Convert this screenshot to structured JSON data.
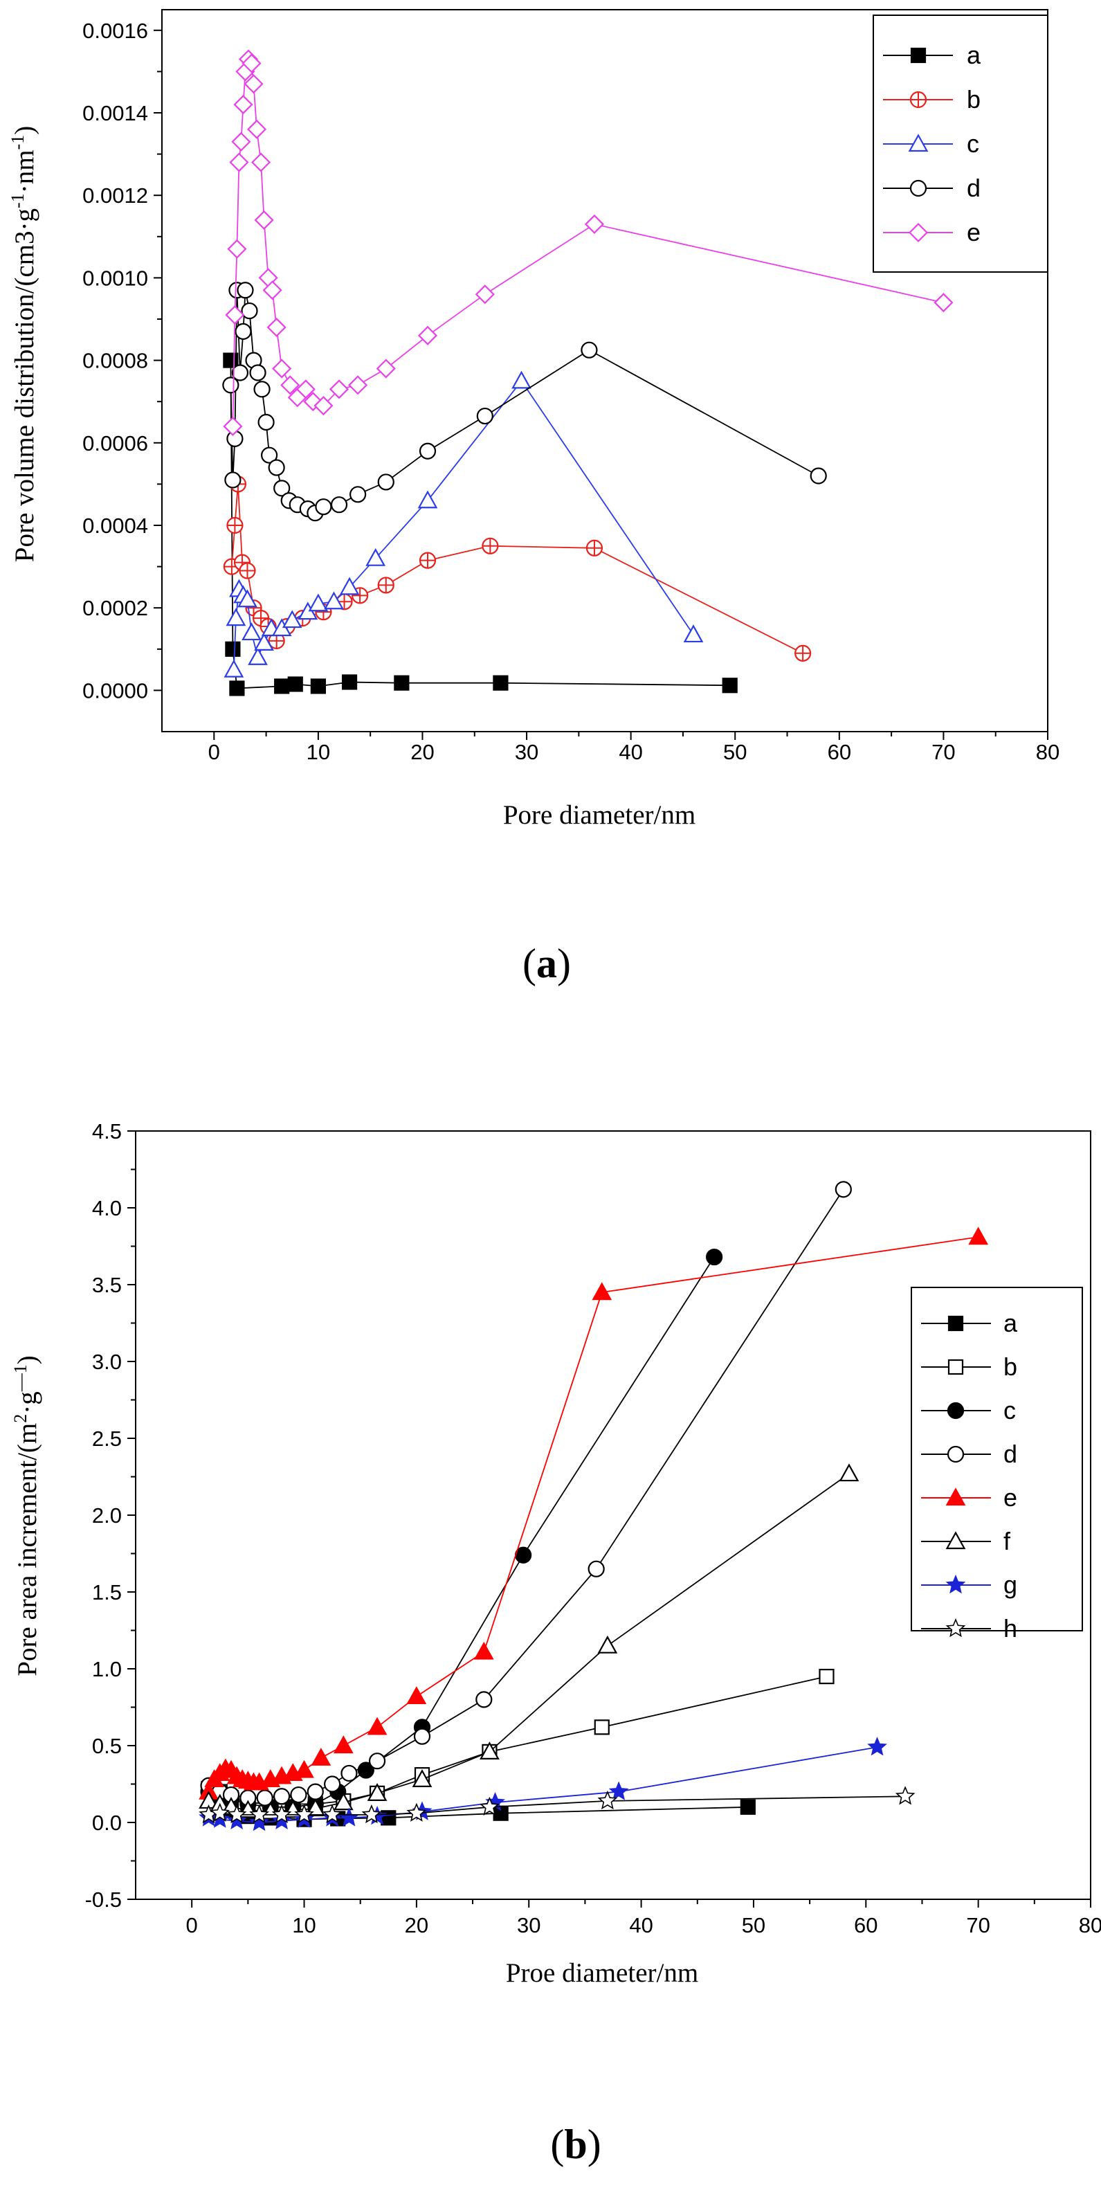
{
  "chart_data": [
    {
      "type": "line",
      "caption_open": "(",
      "caption_letter": "a",
      "caption_close": ")",
      "title": "",
      "xlabel": "Pore diameter/nm",
      "ylabel_prefix": "Pore volume distribution/(cm3·g",
      "ylabel_exp1": "-1",
      "ylabel_mid": "·nm",
      "ylabel_exp2": "-1",
      "ylabel_suffix": ")",
      "xlim": [
        -5,
        80
      ],
      "ylim": [
        -0.0001,
        0.00165
      ],
      "xticks": [
        0,
        10,
        20,
        30,
        40,
        50,
        60,
        70,
        80
      ],
      "yticks": [
        0.0,
        0.0002,
        0.0004,
        0.0006,
        0.0008,
        0.001,
        0.0012,
        0.0014,
        0.0016
      ],
      "ytick_labels": [
        "0.0000",
        "0.0002",
        "0.0004",
        "0.0006",
        "0.0008",
        "0.0010",
        "0.0012",
        "0.0014",
        "0.0016"
      ],
      "grid": false,
      "legend": "top-right",
      "series": [
        {
          "name": "a",
          "color": "#000000",
          "marker": "square",
          "filled": true,
          "points": [
            [
              1.6,
              0.0008
            ],
            [
              1.8,
              0.0001
            ],
            [
              2.2,
              5e-06
            ],
            [
              6.5,
              1e-05
            ],
            [
              7.8,
              1.5e-05
            ],
            [
              10,
              1e-05
            ],
            [
              13,
              2e-05
            ],
            [
              18,
              1.8e-05
            ],
            [
              27.5,
              1.8e-05
            ],
            [
              49.5,
              1.2e-05
            ]
          ]
        },
        {
          "name": "b",
          "color": "#e8211b",
          "marker": "circle-plus",
          "filled": false,
          "points": [
            [
              1.7,
              0.0003
            ],
            [
              2.0,
              0.0004
            ],
            [
              2.3,
              0.0005
            ],
            [
              2.7,
              0.00031
            ],
            [
              3.2,
              0.00029
            ],
            [
              3.8,
              0.0002
            ],
            [
              4.5,
              0.000175
            ],
            [
              5.2,
              0.000155
            ],
            [
              6,
              0.00012
            ],
            [
              7,
              0.000155
            ],
            [
              8.5,
              0.000175
            ],
            [
              10.5,
              0.00019
            ],
            [
              12.5,
              0.000215
            ],
            [
              14,
              0.00023
            ],
            [
              16.5,
              0.000255
            ],
            [
              20.5,
              0.000315
            ],
            [
              26.5,
              0.00035
            ],
            [
              36.5,
              0.000345
            ],
            [
              56.5,
              9e-05
            ]
          ]
        },
        {
          "name": "c",
          "color": "#2b3de8",
          "marker": "triangle",
          "filled": false,
          "points": [
            [
              1.9,
              5e-05
            ],
            [
              2.1,
              0.000175
            ],
            [
              2.4,
              0.000245
            ],
            [
              2.8,
              0.00023
            ],
            [
              3.2,
              0.00022
            ],
            [
              3.6,
              0.00014
            ],
            [
              4.2,
              8e-05
            ],
            [
              4.8,
              0.000115
            ],
            [
              5.5,
              0.00015
            ],
            [
              6.5,
              0.00015
            ],
            [
              7.5,
              0.00017
            ],
            [
              9,
              0.00019
            ],
            [
              10,
              0.00021
            ],
            [
              11.5,
              0.000215
            ],
            [
              13,
              0.00025
            ],
            [
              15.5,
              0.00032
            ],
            [
              20.5,
              0.00046
            ],
            [
              29.5,
              0.00075
            ],
            [
              46,
              0.000135
            ]
          ]
        },
        {
          "name": "d",
          "color": "#000000",
          "marker": "circle",
          "filled": false,
          "points": [
            [
              1.6,
              0.00074
            ],
            [
              1.8,
              0.00051
            ],
            [
              2.0,
              0.00061
            ],
            [
              2.2,
              0.00097
            ],
            [
              2.5,
              0.00077
            ],
            [
              2.8,
              0.00087
            ],
            [
              3.0,
              0.00097
            ],
            [
              3.4,
              0.00092
            ],
            [
              3.8,
              0.0008
            ],
            [
              4.2,
              0.00077
            ],
            [
              4.6,
              0.00073
            ],
            [
              5.0,
              0.00065
            ],
            [
              5.3,
              0.00057
            ],
            [
              6.0,
              0.00054
            ],
            [
              6.5,
              0.00049
            ],
            [
              7.2,
              0.00046
            ],
            [
              8.0,
              0.00045
            ],
            [
              9.0,
              0.00044
            ],
            [
              9.7,
              0.00043
            ],
            [
              10.5,
              0.000445
            ],
            [
              12.0,
              0.00045
            ],
            [
              13.8,
              0.000475
            ],
            [
              16.5,
              0.000505
            ],
            [
              20.5,
              0.00058
            ],
            [
              26.0,
              0.000665
            ],
            [
              36.0,
              0.000825
            ],
            [
              58.0,
              0.00052
            ]
          ]
        },
        {
          "name": "e",
          "color": "#ea40ea",
          "marker": "diamond",
          "filled": false,
          "points": [
            [
              1.8,
              0.00064
            ],
            [
              2.0,
              0.00091
            ],
            [
              2.2,
              0.00107
            ],
            [
              2.4,
              0.00128
            ],
            [
              2.6,
              0.00133
            ],
            [
              2.8,
              0.00142
            ],
            [
              3.0,
              0.0015
            ],
            [
              3.3,
              0.00153
            ],
            [
              3.6,
              0.00152
            ],
            [
              3.8,
              0.00147
            ],
            [
              4.1,
              0.00136
            ],
            [
              4.5,
              0.00128
            ],
            [
              4.8,
              0.00114
            ],
            [
              5.2,
              0.001
            ],
            [
              5.6,
              0.00097
            ],
            [
              6.0,
              0.00088
            ],
            [
              6.5,
              0.00078
            ],
            [
              7.3,
              0.00074
            ],
            [
              8.0,
              0.00071
            ],
            [
              8.8,
              0.00073
            ],
            [
              9.5,
              0.0007
            ],
            [
              10.5,
              0.00069
            ],
            [
              12.0,
              0.00073
            ],
            [
              13.8,
              0.00074
            ],
            [
              16.5,
              0.00078
            ],
            [
              20.5,
              0.00086
            ],
            [
              26.0,
              0.00096
            ],
            [
              36.5,
              0.00113
            ],
            [
              70.0,
              0.00094
            ]
          ]
        }
      ]
    },
    {
      "type": "line",
      "caption_open": "(",
      "caption_letter": "b",
      "caption_close": ")",
      "title": "",
      "xlabel": "Proe diameter/nm",
      "ylabel_prefix": "Pore area increment/(m",
      "ylabel_exp1": "2",
      "ylabel_mid": "·g",
      "ylabel_exp2": "—1",
      "ylabel_suffix": ")",
      "xlim": [
        -5,
        80
      ],
      "ylim": [
        -0.5,
        4.5
      ],
      "xticks": [
        0,
        10,
        20,
        30,
        40,
        50,
        60,
        70,
        80
      ],
      "yticks": [
        -0.5,
        0.0,
        0.5,
        1.0,
        1.5,
        2.0,
        2.5,
        3.0,
        3.5,
        4.0,
        4.5
      ],
      "ytick_labels": [
        "-0.5",
        "0.0",
        "0.5",
        "1.0",
        "1.5",
        "2.0",
        "2.5",
        "3.0",
        "3.5",
        "4.0",
        "4.5"
      ],
      "grid": false,
      "legend": "right",
      "series": [
        {
          "name": "a",
          "color": "#000000",
          "marker": "square",
          "filled": true,
          "points": [
            [
              1.5,
              0.22
            ],
            [
              2.5,
              0.15
            ],
            [
              3.5,
              0.08
            ],
            [
              5,
              0.04
            ],
            [
              7,
              0.03
            ],
            [
              10,
              0.02
            ],
            [
              13,
              0.025
            ],
            [
              17.5,
              0.03
            ],
            [
              27.5,
              0.06
            ],
            [
              49.5,
              0.1
            ]
          ]
        },
        {
          "name": "b",
          "color": "#000000",
          "marker": "square",
          "filled": false,
          "points": [
            [
              1.5,
              0.2
            ],
            [
              2.5,
              0.2
            ],
            [
              3.5,
              0.16
            ],
            [
              5,
              0.13
            ],
            [
              7,
              0.12
            ],
            [
              9,
              0.12
            ],
            [
              11,
              0.12
            ],
            [
              13.5,
              0.14
            ],
            [
              16.5,
              0.19
            ],
            [
              20.5,
              0.31
            ],
            [
              26.5,
              0.46
            ],
            [
              36.5,
              0.62
            ],
            [
              56.5,
              0.95
            ]
          ]
        },
        {
          "name": "c",
          "color": "#000000",
          "marker": "circle",
          "filled": true,
          "points": [
            [
              1.5,
              0.2
            ],
            [
              2.5,
              0.18
            ],
            [
              3.5,
              0.15
            ],
            [
              5,
              0.12
            ],
            [
              7,
              0.1
            ],
            [
              9,
              0.1
            ],
            [
              11,
              0.12
            ],
            [
              13,
              0.2
            ],
            [
              15.5,
              0.34
            ],
            [
              20.5,
              0.62
            ],
            [
              29.5,
              1.74
            ],
            [
              46.5,
              3.68
            ]
          ]
        },
        {
          "name": "d",
          "color": "#000000",
          "marker": "circle",
          "filled": false,
          "points": [
            [
              1.5,
              0.24
            ],
            [
              2.5,
              0.2
            ],
            [
              3.5,
              0.18
            ],
            [
              5,
              0.16
            ],
            [
              6.5,
              0.16
            ],
            [
              8,
              0.17
            ],
            [
              9.5,
              0.18
            ],
            [
              11,
              0.2
            ],
            [
              12.5,
              0.25
            ],
            [
              14,
              0.32
            ],
            [
              16.5,
              0.4
            ],
            [
              20.5,
              0.56
            ],
            [
              26,
              0.8
            ],
            [
              36,
              1.65
            ],
            [
              58,
              4.12
            ]
          ]
        },
        {
          "name": "e",
          "color": "#ff0000",
          "marker": "triangle",
          "filled": true,
          "points": [
            [
              1.5,
              0.2
            ],
            [
              2.0,
              0.28
            ],
            [
              2.5,
              0.32
            ],
            [
              3.0,
              0.35
            ],
            [
              3.5,
              0.34
            ],
            [
              4.0,
              0.3
            ],
            [
              4.5,
              0.28
            ],
            [
              5.0,
              0.27
            ],
            [
              5.5,
              0.26
            ],
            [
              6.0,
              0.26
            ],
            [
              7.0,
              0.28
            ],
            [
              8.0,
              0.3
            ],
            [
              9.0,
              0.32
            ],
            [
              10.0,
              0.34
            ],
            [
              11.5,
              0.42
            ],
            [
              13.5,
              0.5
            ],
            [
              16.5,
              0.62
            ],
            [
              20.0,
              0.82
            ],
            [
              26.0,
              1.11
            ],
            [
              36.5,
              3.45
            ],
            [
              70.0,
              3.81
            ]
          ]
        },
        {
          "name": "f",
          "color": "#000000",
          "marker": "triangle",
          "filled": false,
          "points": [
            [
              1.5,
              0.14
            ],
            [
              2.5,
              0.12
            ],
            [
              3.5,
              0.1
            ],
            [
              5,
              0.08
            ],
            [
              7,
              0.07
            ],
            [
              9,
              0.08
            ],
            [
              11,
              0.09
            ],
            [
              13.5,
              0.13
            ],
            [
              16.5,
              0.19
            ],
            [
              20.5,
              0.28
            ],
            [
              26.5,
              0.46
            ],
            [
              37,
              1.15
            ],
            [
              58.5,
              2.27
            ]
          ]
        },
        {
          "name": "g",
          "color": "#1a23d6",
          "marker": "star",
          "filled": true,
          "points": [
            [
              1.5,
              0.03
            ],
            [
              2.5,
              0.02
            ],
            [
              4,
              0.01
            ],
            [
              6,
              0.0
            ],
            [
              8,
              0.01
            ],
            [
              10,
              0.02
            ],
            [
              12.5,
              0.03
            ],
            [
              14,
              0.03
            ],
            [
              16.5,
              0.04
            ],
            [
              20.5,
              0.07
            ],
            [
              27,
              0.13
            ],
            [
              38,
              0.2
            ],
            [
              61,
              0.49
            ]
          ]
        },
        {
          "name": "h",
          "color": "#000000",
          "marker": "star",
          "filled": false,
          "points": [
            [
              1.5,
              0.05
            ],
            [
              2.5,
              0.06
            ],
            [
              4,
              0.05
            ],
            [
              6,
              0.05
            ],
            [
              8,
              0.05
            ],
            [
              10,
              0.05
            ],
            [
              12.5,
              0.05
            ],
            [
              16,
              0.05
            ],
            [
              20,
              0.06
            ],
            [
              26.5,
              0.1
            ],
            [
              37,
              0.14
            ],
            [
              63.5,
              0.17
            ]
          ]
        }
      ]
    }
  ]
}
